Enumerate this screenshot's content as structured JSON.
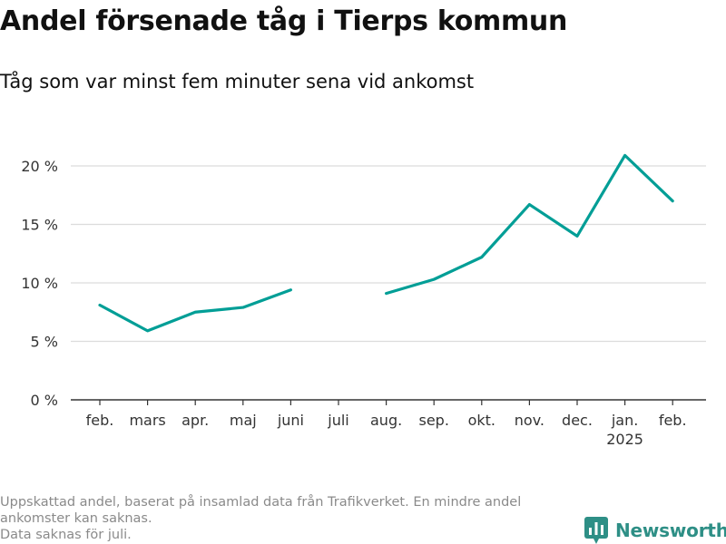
{
  "title": "Andel försenade tåg i Tierps kommun",
  "subtitle": "Tåg som var minst fem minuter sena vid ankomst",
  "footnote": {
    "lines": [
      "Uppskattad andel, baserat på insamlad data från Trafikverket. En mindre andel",
      "ankomster kan saknas.",
      "Data saknas för juli."
    ]
  },
  "brand": {
    "name": "Newsworthy",
    "icon": "bar-chart-logo-icon"
  },
  "colors": {
    "line": "#009e96",
    "grid": "#dcdcdc",
    "axis": "#333333",
    "brand": "#2e8f86",
    "footnote": "#8a8a8a"
  },
  "chart_data": {
    "type": "line",
    "categories": [
      "feb.",
      "mars",
      "apr.",
      "maj",
      "juni",
      "juli",
      "aug.",
      "sep.",
      "okt.",
      "nov.",
      "dec.",
      "jan.",
      "feb."
    ],
    "year_label": {
      "category_index": 11,
      "text": "2025"
    },
    "series": [
      {
        "values": [
          8.1,
          5.9,
          7.5,
          7.9,
          9.4,
          null,
          9.1,
          10.3,
          12.2,
          16.7,
          14.0,
          20.9,
          17.0
        ]
      }
    ],
    "yticks": [
      0,
      5,
      10,
      15,
      20
    ],
    "ytick_labels": [
      "0 %",
      "5 %",
      "10 %",
      "15 %",
      "20 %"
    ],
    "ylim": [
      0,
      22
    ],
    "grid": true
  }
}
